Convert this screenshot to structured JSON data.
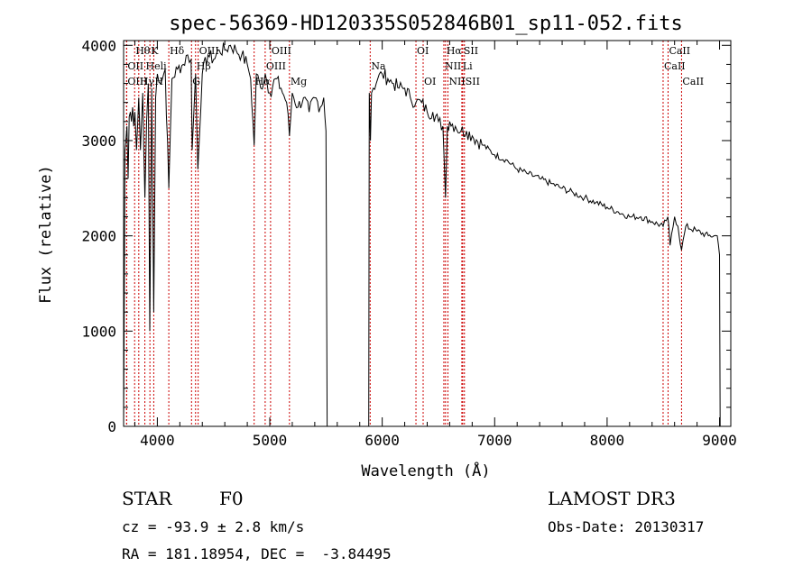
{
  "chart_data": {
    "type": "line",
    "title": "spec-56369-HD120335S052846B01_sp11-052.fits",
    "xlabel": "Wavelength (Å)",
    "ylabel": "Flux (relative)",
    "xlim": [
      3700,
      9100
    ],
    "ylim": [
      0,
      4050
    ],
    "x_ticks": [
      4000,
      5000,
      6000,
      7000,
      8000,
      9000
    ],
    "y_ticks": [
      0,
      1000,
      2000,
      3000,
      4000
    ],
    "series": [
      {
        "name": "flux",
        "x": [
          3700,
          3705,
          3712,
          3720,
          3730,
          3740,
          3750,
          3760,
          3770,
          3780,
          3790,
          3800,
          3815,
          3835,
          3850,
          3870,
          3889,
          3905,
          3920,
          3933,
          3950,
          3968,
          3985,
          4000,
          4030,
          4070,
          4102,
          4130,
          4180,
          4230,
          4270,
          4300,
          4310,
          4340,
          4360,
          4400,
          4450,
          4500,
          4550,
          4600,
          4650,
          4700,
          4750,
          4800,
          4830,
          4861,
          4880,
          4920,
          4960,
          5000,
          5050,
          5100,
          5150,
          5175,
          5200,
          5250,
          5300,
          5350,
          5400,
          5450,
          5480,
          5500,
          5510,
          5520,
          5880,
          5885,
          5895,
          5905,
          5920,
          5960,
          6000,
          6050,
          6100,
          6150,
          6200,
          6250,
          6300,
          6350,
          6400,
          6450,
          6500,
          6540,
          6563,
          6580,
          6600,
          6650,
          6700,
          6750,
          6800,
          6900,
          7000,
          7100,
          7200,
          7300,
          7400,
          7500,
          7600,
          7700,
          7800,
          7900,
          8000,
          8100,
          8200,
          8300,
          8400,
          8498,
          8540,
          8560,
          8600,
          8630,
          8662,
          8700,
          8800,
          8900,
          8950,
          8980,
          9000,
          9005
        ],
        "y": [
          0,
          1100,
          2900,
          3000,
          3150,
          2600,
          3250,
          3300,
          3200,
          3350,
          3150,
          3300,
          2900,
          3450,
          2900,
          3500,
          2400,
          3200,
          3600,
          1000,
          3550,
          1200,
          3450,
          3700,
          3600,
          3750,
          2500,
          3650,
          3750,
          3800,
          3900,
          3850,
          2900,
          3700,
          2700,
          3700,
          3900,
          3850,
          3950,
          3950,
          4000,
          3950,
          3900,
          3800,
          3650,
          2950,
          3700,
          3550,
          3700,
          3500,
          3650,
          3550,
          3400,
          3050,
          3500,
          3350,
          3450,
          3300,
          3450,
          3350,
          3450,
          3100,
          0,
          0,
          0,
          3500,
          3000,
          3500,
          3550,
          3650,
          3700,
          3650,
          3600,
          3550,
          3550,
          3450,
          3400,
          3400,
          3300,
          3300,
          3200,
          3150,
          2400,
          3150,
          3200,
          3150,
          3100,
          3100,
          3050,
          2950,
          2850,
          2800,
          2700,
          2650,
          2600,
          2550,
          2500,
          2450,
          2400,
          2350,
          2300,
          2250,
          2200,
          2200,
          2150,
          2100,
          2200,
          1900,
          2200,
          2100,
          1850,
          2100,
          2050,
          2000,
          2000,
          2000,
          1800,
          0
        ]
      }
    ],
    "line_marks": [
      {
        "label": "Hθ",
        "wavelength": 3798,
        "row": 0
      },
      {
        "label": "OII",
        "wavelength": 3727,
        "row": 1
      },
      {
        "label": "OIII",
        "wavelength": 3727,
        "row": 2
      },
      {
        "label": "Hγ",
        "wavelength": 3835,
        "row": 2
      },
      {
        "label": "K",
        "wavelength": 3934,
        "row": 0
      },
      {
        "label": "Heli",
        "wavelength": 3889,
        "row": 1
      },
      {
        "label": "H",
        "wavelength": 3968,
        "row": 2
      },
      {
        "label": "Hδ",
        "wavelength": 4102,
        "row": 0
      },
      {
        "label": "OIII",
        "wavelength": 4363,
        "row": 0
      },
      {
        "label": "Hβ",
        "wavelength": 4340,
        "row": 1
      },
      {
        "label": "G",
        "wavelength": 4304,
        "row": 2
      },
      {
        "label": "OIII",
        "wavelength": 5007,
        "row": 0
      },
      {
        "label": "OIII",
        "wavelength": 4959,
        "row": 1
      },
      {
        "label": "Hα",
        "wavelength": 4861,
        "row": 2
      },
      {
        "label": "Mg",
        "wavelength": 5175,
        "row": 2
      },
      {
        "label": "Na",
        "wavelength": 5893,
        "row": 1
      },
      {
        "label": "OI",
        "wavelength": 6300,
        "row": 0
      },
      {
        "label": "OI",
        "wavelength": 6364,
        "row": 2
      },
      {
        "label": "Hα",
        "wavelength": 6563,
        "row": 0
      },
      {
        "label": "SII",
        "wavelength": 6716,
        "row": 0
      },
      {
        "label": "NII",
        "wavelength": 6548,
        "row": 1
      },
      {
        "label": "Li",
        "wavelength": 6708,
        "row": 1
      },
      {
        "label": "NII",
        "wavelength": 6584,
        "row": 2
      },
      {
        "label": "SII",
        "wavelength": 6731,
        "row": 2
      },
      {
        "label": "CaII",
        "wavelength": 8542,
        "row": 0
      },
      {
        "label": "CaII",
        "wavelength": 8498,
        "row": 1
      },
      {
        "label": "CaII",
        "wavelength": 8662,
        "row": 2
      }
    ],
    "colors": {
      "spectrum": "#000000",
      "marker": "#cc0000",
      "axis": "#000000"
    }
  },
  "info": {
    "object_class": "STAR",
    "subclass": "F0",
    "survey": "LAMOST DR3",
    "cz": "cz = -93.9 ± 2.8 km/s",
    "obs_date": "Obs-Date: 20130317",
    "coords": "RA = 181.18954, DEC =  -3.84495"
  }
}
